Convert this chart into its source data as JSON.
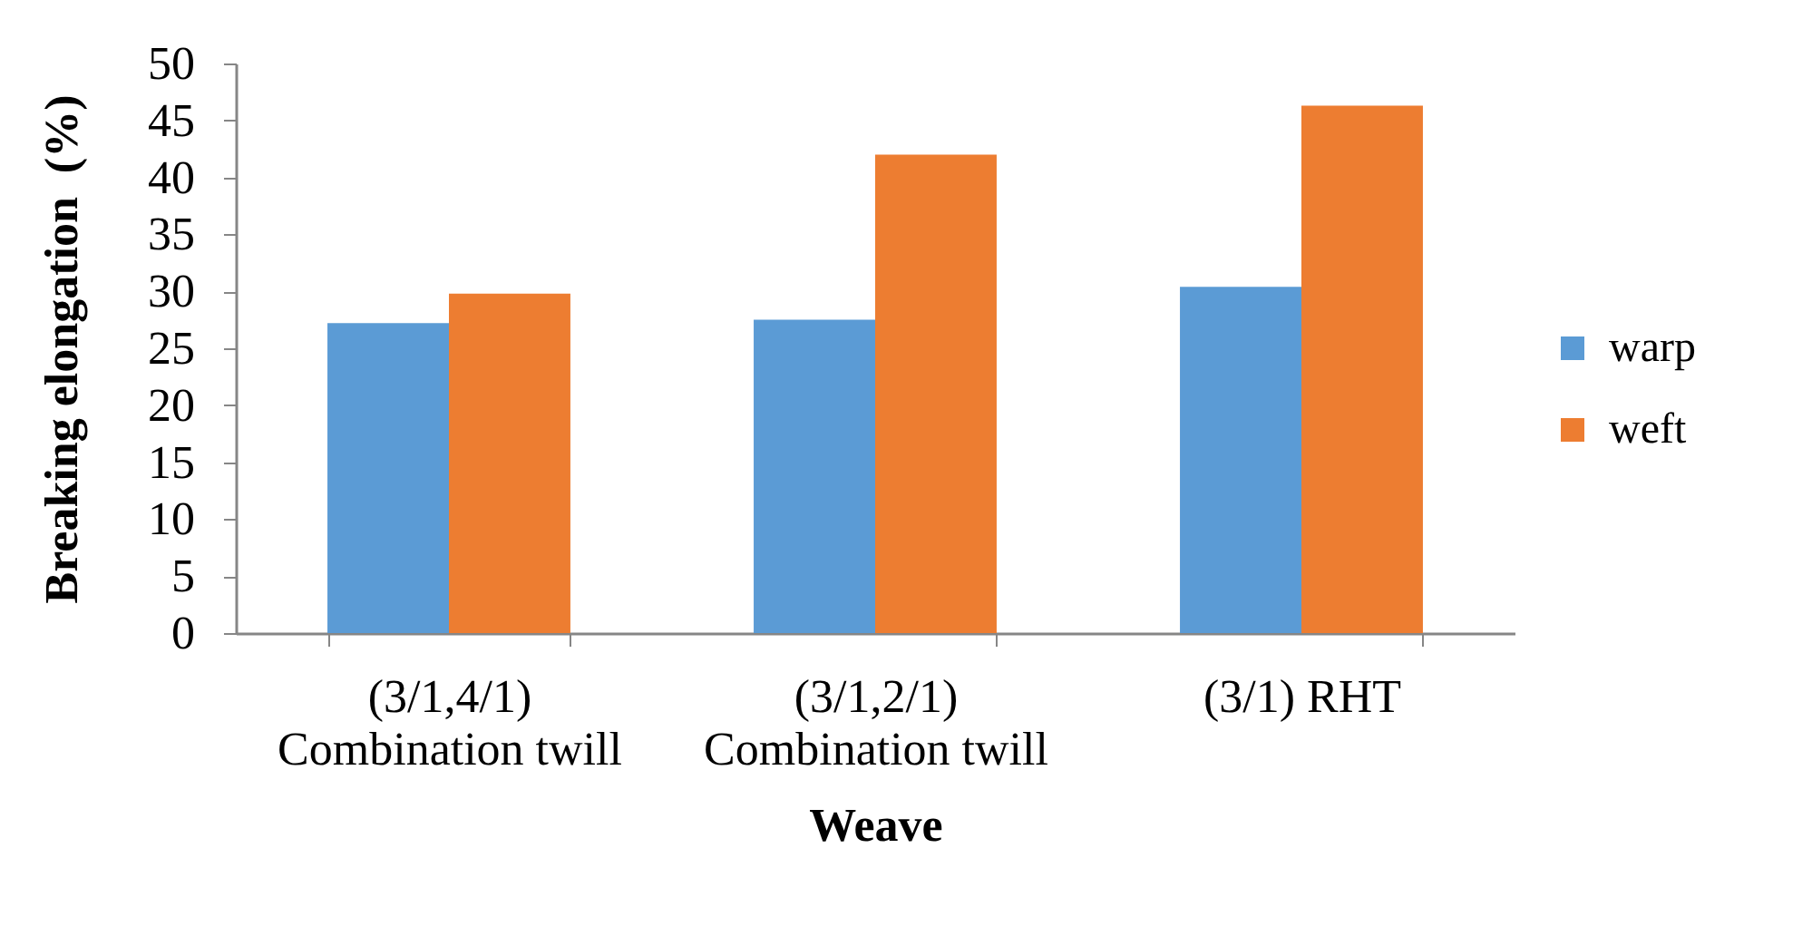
{
  "chart_data": {
    "type": "bar",
    "xlabel": "Weave",
    "ylabel": "Breaking elongation  (%)",
    "categories": [
      "(3/1,4/1) Combination twill",
      "(3/1,2/1) Combination twill",
      "(3/1) RHT"
    ],
    "series": [
      {
        "name": "warp",
        "color": "#5b9bd5",
        "values": [
          27.2,
          27.5,
          30.4
        ]
      },
      {
        "name": "weft",
        "color": "#ed7d31",
        "values": [
          29.8,
          42.0,
          46.3
        ]
      }
    ],
    "ylim": [
      0,
      50
    ],
    "yticks": [
      0,
      5,
      10,
      15,
      20,
      25,
      30,
      35,
      40,
      45,
      50
    ],
    "legend": "right"
  }
}
